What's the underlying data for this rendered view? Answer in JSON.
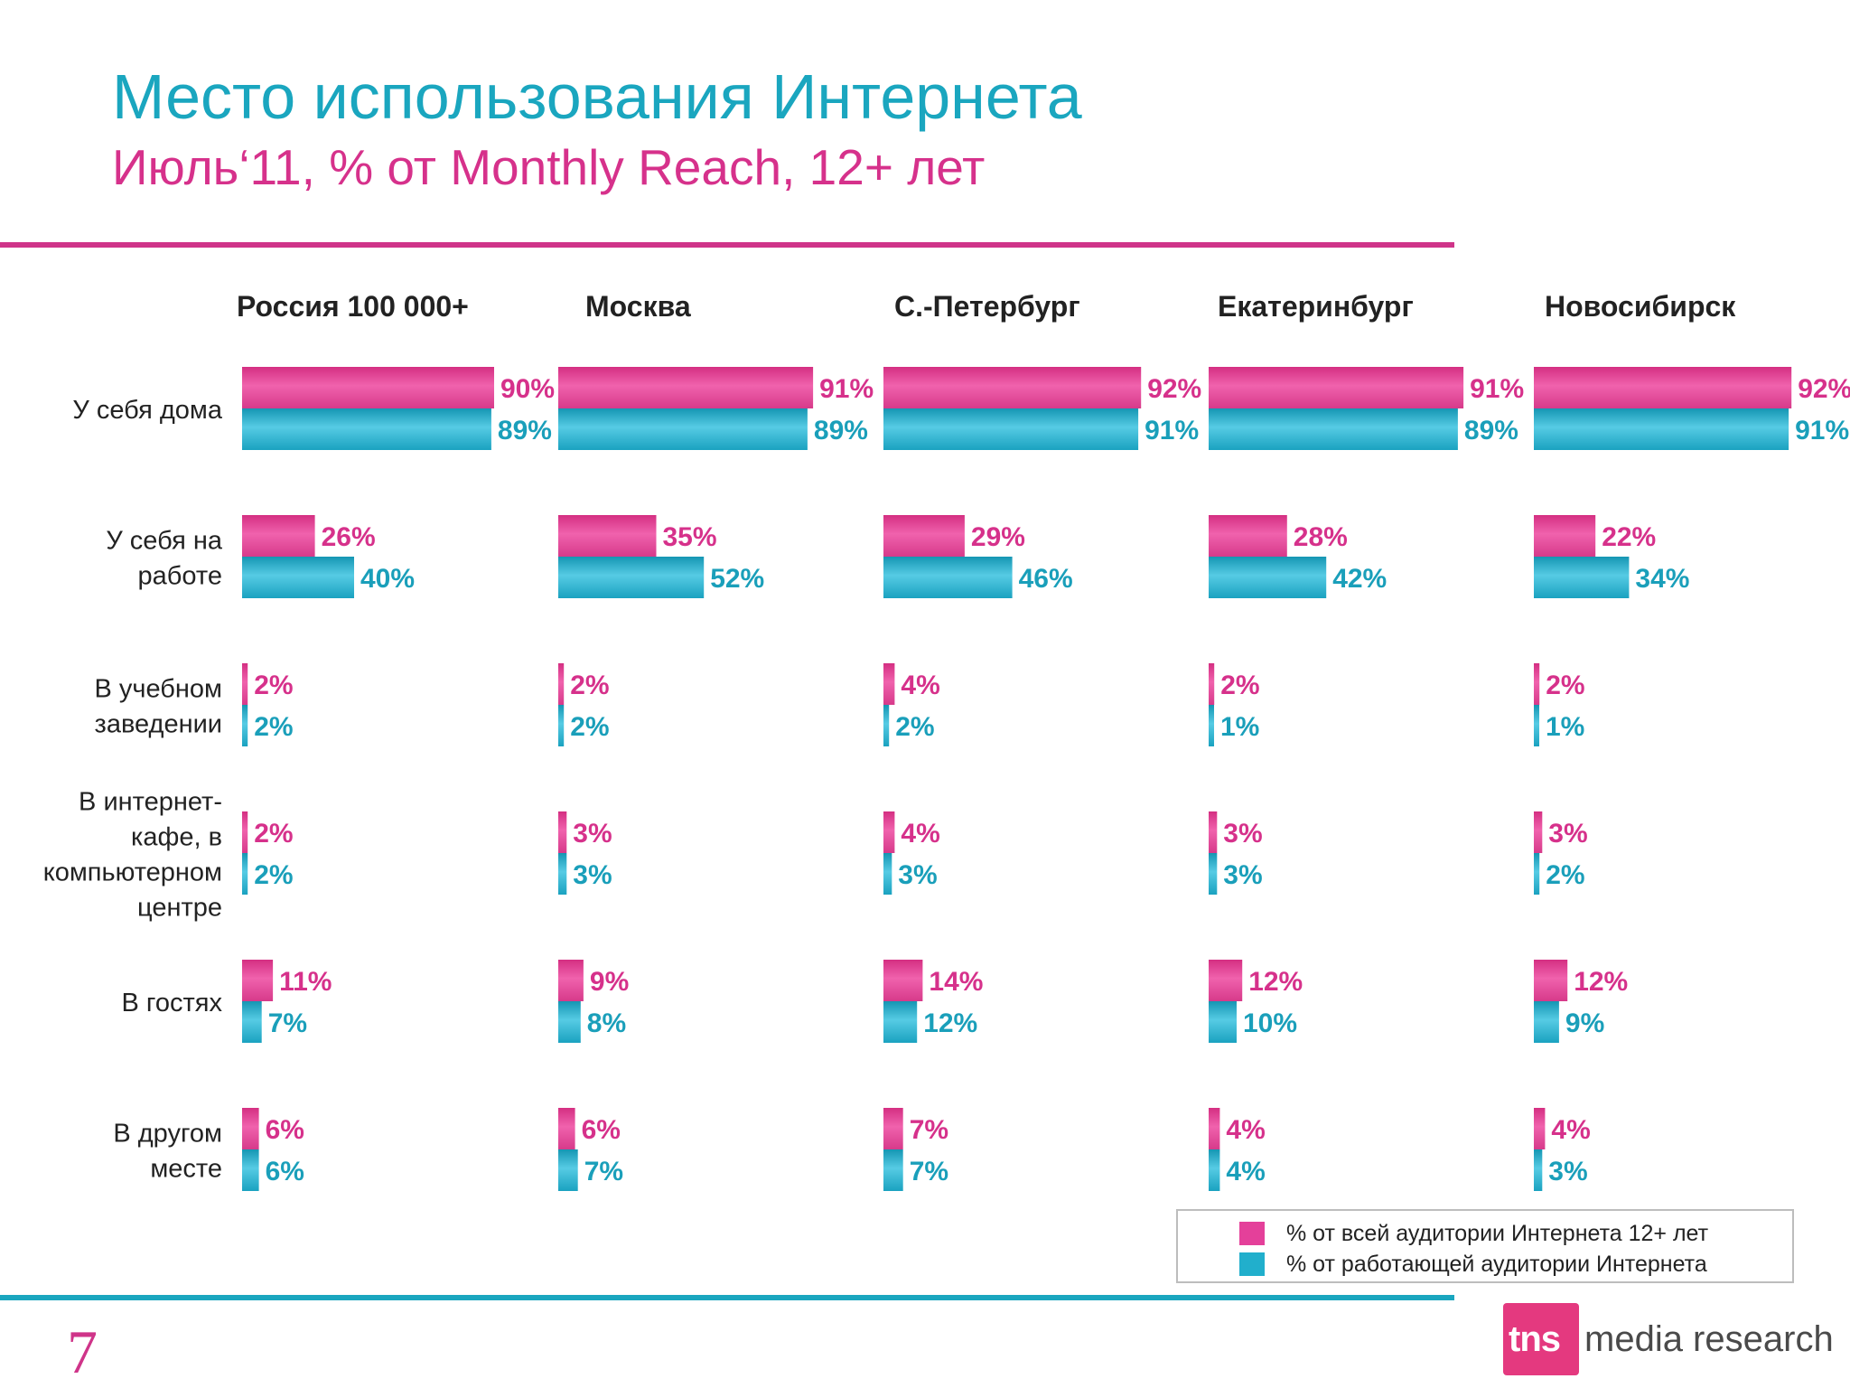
{
  "title": "Место использования Интернета",
  "subtitle": "Июль‘11, % от Monthly Reach, 12+ лет",
  "page_number": "7",
  "logo": {
    "box_text": "tns",
    "rest_text": "media research"
  },
  "colors": {
    "pink": "#e4409a",
    "teal": "#21afcc",
    "pink_label": "#d6318b",
    "teal_label": "#1a9fba"
  },
  "chart_data": {
    "type": "bar",
    "orientation": "horizontal",
    "unit": "%",
    "xlim": [
      0,
      100
    ],
    "groups": [
      "Россия 100 000+",
      "Москва",
      "С.-Петербург",
      "Екатеринбург",
      "Новосибирск"
    ],
    "categories": [
      "У себя дома",
      "У себя на работе",
      "В учебном заведении",
      "В интернет-кафе, в компьютерном центре",
      "В гостях",
      "В другом месте"
    ],
    "category_lines": [
      [
        "У себя дома"
      ],
      [
        "У себя на",
        "работе"
      ],
      [
        "В учебном",
        "заведении"
      ],
      [
        "В интернет-",
        "кафе, в",
        "компьютерном",
        "центре"
      ],
      [
        "В гостях"
      ],
      [
        "В другом",
        "месте"
      ]
    ],
    "series": [
      {
        "name": "% от всей аудитории Интернета 12+ лет",
        "color": "#e4409a",
        "values": [
          [
            90,
            26,
            2,
            2,
            11,
            6
          ],
          [
            91,
            35,
            2,
            3,
            9,
            6
          ],
          [
            92,
            29,
            4,
            4,
            14,
            7
          ],
          [
            91,
            28,
            2,
            3,
            12,
            4
          ],
          [
            92,
            22,
            2,
            3,
            12,
            4
          ]
        ]
      },
      {
        "name": "% от работающей аудитории Интернета",
        "color": "#21afcc",
        "values": [
          [
            89,
            40,
            2,
            2,
            7,
            6
          ],
          [
            89,
            52,
            2,
            3,
            8,
            7
          ],
          [
            91,
            46,
            2,
            3,
            12,
            7
          ],
          [
            89,
            42,
            1,
            3,
            10,
            4
          ],
          [
            91,
            34,
            1,
            2,
            9,
            3
          ]
        ]
      }
    ],
    "legend": "bottom-right"
  }
}
